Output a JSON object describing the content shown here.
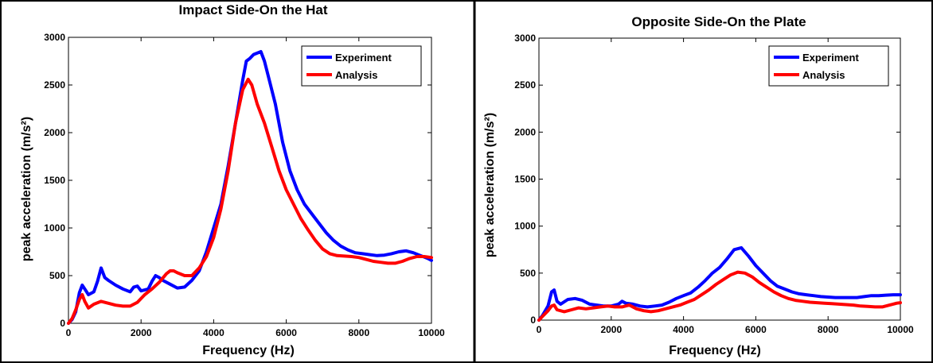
{
  "chart_data": [
    {
      "type": "line",
      "title": "Impact Side-On the Hat",
      "xlabel": "Frequency (Hz)",
      "ylabel": "peak acceleration (m/s²)",
      "xlim": [
        0,
        10000
      ],
      "ylim": [
        0,
        3000
      ],
      "xticks": [
        "0",
        "2000",
        "4000",
        "6000",
        "8000",
        "10000"
      ],
      "yticks": [
        "0",
        "500",
        "1000",
        "1500",
        "2000",
        "2500",
        "3000"
      ],
      "legend": "top-right",
      "grid": false,
      "series": [
        {
          "name": "Experiment",
          "color": "#0000ff",
          "points": [
            [
              0,
              0
            ],
            [
              100,
              40
            ],
            [
              200,
              120
            ],
            [
              300,
              320
            ],
            [
              380,
              400
            ],
            [
              450,
              360
            ],
            [
              550,
              300
            ],
            [
              700,
              330
            ],
            [
              800,
              440
            ],
            [
              900,
              580
            ],
            [
              1000,
              480
            ],
            [
              1100,
              450
            ],
            [
              1300,
              400
            ],
            [
              1500,
              360
            ],
            [
              1700,
              330
            ],
            [
              1800,
              380
            ],
            [
              1900,
              390
            ],
            [
              2000,
              340
            ],
            [
              2200,
              360
            ],
            [
              2300,
              440
            ],
            [
              2400,
              500
            ],
            [
              2500,
              480
            ],
            [
              2600,
              450
            ],
            [
              2800,
              410
            ],
            [
              3000,
              370
            ],
            [
              3200,
              380
            ],
            [
              3400,
              450
            ],
            [
              3600,
              550
            ],
            [
              3800,
              750
            ],
            [
              4000,
              1000
            ],
            [
              4200,
              1250
            ],
            [
              4400,
              1650
            ],
            [
              4600,
              2100
            ],
            [
              4800,
              2550
            ],
            [
              4900,
              2750
            ],
            [
              5000,
              2780
            ],
            [
              5100,
              2820
            ],
            [
              5300,
              2850
            ],
            [
              5400,
              2750
            ],
            [
              5500,
              2600
            ],
            [
              5700,
              2300
            ],
            [
              5900,
              1900
            ],
            [
              6100,
              1600
            ],
            [
              6300,
              1400
            ],
            [
              6500,
              1250
            ],
            [
              6700,
              1150
            ],
            [
              6900,
              1050
            ],
            [
              7100,
              950
            ],
            [
              7300,
              870
            ],
            [
              7500,
              810
            ],
            [
              7700,
              770
            ],
            [
              7900,
              740
            ],
            [
              8100,
              730
            ],
            [
              8300,
              720
            ],
            [
              8500,
              710
            ],
            [
              8700,
              715
            ],
            [
              8900,
              730
            ],
            [
              9100,
              750
            ],
            [
              9300,
              760
            ],
            [
              9500,
              740
            ],
            [
              9700,
              710
            ],
            [
              9900,
              680
            ],
            [
              10000,
              660
            ]
          ]
        },
        {
          "name": "Analysis",
          "color": "#ff0000",
          "points": [
            [
              0,
              0
            ],
            [
              100,
              50
            ],
            [
              200,
              140
            ],
            [
              300,
              250
            ],
            [
              380,
              300
            ],
            [
              450,
              230
            ],
            [
              550,
              160
            ],
            [
              700,
              200
            ],
            [
              900,
              230
            ],
            [
              1100,
              210
            ],
            [
              1300,
              190
            ],
            [
              1500,
              180
            ],
            [
              1700,
              180
            ],
            [
              1900,
              220
            ],
            [
              2100,
              300
            ],
            [
              2300,
              360
            ],
            [
              2500,
              430
            ],
            [
              2700,
              520
            ],
            [
              2800,
              550
            ],
            [
              2900,
              550
            ],
            [
              3000,
              530
            ],
            [
              3200,
              500
            ],
            [
              3400,
              500
            ],
            [
              3600,
              580
            ],
            [
              3800,
              700
            ],
            [
              4000,
              900
            ],
            [
              4200,
              1200
            ],
            [
              4400,
              1600
            ],
            [
              4600,
              2100
            ],
            [
              4800,
              2450
            ],
            [
              4950,
              2560
            ],
            [
              5050,
              2500
            ],
            [
              5200,
              2300
            ],
            [
              5400,
              2100
            ],
            [
              5600,
              1850
            ],
            [
              5800,
              1600
            ],
            [
              6000,
              1400
            ],
            [
              6200,
              1250
            ],
            [
              6400,
              1100
            ],
            [
              6600,
              980
            ],
            [
              6800,
              870
            ],
            [
              7000,
              780
            ],
            [
              7200,
              730
            ],
            [
              7400,
              710
            ],
            [
              7600,
              705
            ],
            [
              7800,
              700
            ],
            [
              8000,
              690
            ],
            [
              8200,
              670
            ],
            [
              8400,
              650
            ],
            [
              8600,
              640
            ],
            [
              8800,
              630
            ],
            [
              9000,
              630
            ],
            [
              9200,
              650
            ],
            [
              9400,
              680
            ],
            [
              9600,
              700
            ],
            [
              9800,
              700
            ],
            [
              10000,
              690
            ]
          ]
        }
      ]
    },
    {
      "type": "line",
      "title": "Opposite Side-On the Plate",
      "xlabel": "Frequency (Hz)",
      "ylabel": "peak acceleration (m/s²)",
      "xlim": [
        0,
        10000
      ],
      "ylim": [
        0,
        3000
      ],
      "xticks": [
        "0",
        "2000",
        "4000",
        "6000",
        "8000",
        "10000"
      ],
      "yticks": [
        "0",
        "500",
        "1000",
        "1500",
        "2000",
        "2500",
        "3000"
      ],
      "legend": "top-right",
      "grid": false,
      "series": [
        {
          "name": "Experiment",
          "color": "#0000ff",
          "points": [
            [
              0,
              0
            ],
            [
              100,
              50
            ],
            [
              250,
              150
            ],
            [
              350,
              300
            ],
            [
              420,
              320
            ],
            [
              500,
              200
            ],
            [
              600,
              170
            ],
            [
              800,
              220
            ],
            [
              1000,
              230
            ],
            [
              1200,
              210
            ],
            [
              1400,
              170
            ],
            [
              1600,
              160
            ],
            [
              1800,
              150
            ],
            [
              2000,
              150
            ],
            [
              2200,
              170
            ],
            [
              2300,
              200
            ],
            [
              2400,
              180
            ],
            [
              2600,
              170
            ],
            [
              2800,
              150
            ],
            [
              3000,
              140
            ],
            [
              3200,
              150
            ],
            [
              3400,
              160
            ],
            [
              3600,
              190
            ],
            [
              3800,
              230
            ],
            [
              4000,
              260
            ],
            [
              4200,
              290
            ],
            [
              4400,
              350
            ],
            [
              4600,
              420
            ],
            [
              4800,
              500
            ],
            [
              5000,
              560
            ],
            [
              5200,
              650
            ],
            [
              5400,
              750
            ],
            [
              5600,
              770
            ],
            [
              5800,
              680
            ],
            [
              6000,
              580
            ],
            [
              6200,
              500
            ],
            [
              6400,
              420
            ],
            [
              6600,
              360
            ],
            [
              6800,
              330
            ],
            [
              7000,
              300
            ],
            [
              7200,
              280
            ],
            [
              7400,
              270
            ],
            [
              7600,
              260
            ],
            [
              7800,
              250
            ],
            [
              8000,
              245
            ],
            [
              8200,
              240
            ],
            [
              8400,
              240
            ],
            [
              8600,
              240
            ],
            [
              8800,
              240
            ],
            [
              9000,
              250
            ],
            [
              9200,
              260
            ],
            [
              9400,
              260
            ],
            [
              9600,
              265
            ],
            [
              9800,
              270
            ],
            [
              10000,
              270
            ]
          ]
        },
        {
          "name": "Analysis",
          "color": "#ff0000",
          "points": [
            [
              0,
              0
            ],
            [
              100,
              40
            ],
            [
              250,
              100
            ],
            [
              350,
              150
            ],
            [
              420,
              160
            ],
            [
              500,
              110
            ],
            [
              700,
              90
            ],
            [
              900,
              110
            ],
            [
              1100,
              130
            ],
            [
              1300,
              120
            ],
            [
              1500,
              130
            ],
            [
              1700,
              140
            ],
            [
              1900,
              150
            ],
            [
              2100,
              140
            ],
            [
              2300,
              140
            ],
            [
              2500,
              160
            ],
            [
              2700,
              120
            ],
            [
              2900,
              100
            ],
            [
              3100,
              90
            ],
            [
              3300,
              100
            ],
            [
              3500,
              120
            ],
            [
              3700,
              140
            ],
            [
              3900,
              160
            ],
            [
              4100,
              190
            ],
            [
              4300,
              220
            ],
            [
              4500,
              270
            ],
            [
              4700,
              320
            ],
            [
              4900,
              380
            ],
            [
              5100,
              430
            ],
            [
              5300,
              480
            ],
            [
              5500,
              510
            ],
            [
              5700,
              500
            ],
            [
              5900,
              460
            ],
            [
              6100,
              400
            ],
            [
              6300,
              350
            ],
            [
              6500,
              300
            ],
            [
              6700,
              260
            ],
            [
              6900,
              230
            ],
            [
              7100,
              210
            ],
            [
              7300,
              200
            ],
            [
              7500,
              190
            ],
            [
              7700,
              185
            ],
            [
              7900,
              180
            ],
            [
              8100,
              175
            ],
            [
              8300,
              170
            ],
            [
              8500,
              165
            ],
            [
              8700,
              160
            ],
            [
              8900,
              150
            ],
            [
              9100,
              145
            ],
            [
              9300,
              140
            ],
            [
              9500,
              140
            ],
            [
              9700,
              160
            ],
            [
              9900,
              180
            ],
            [
              10000,
              185
            ]
          ]
        }
      ]
    }
  ]
}
